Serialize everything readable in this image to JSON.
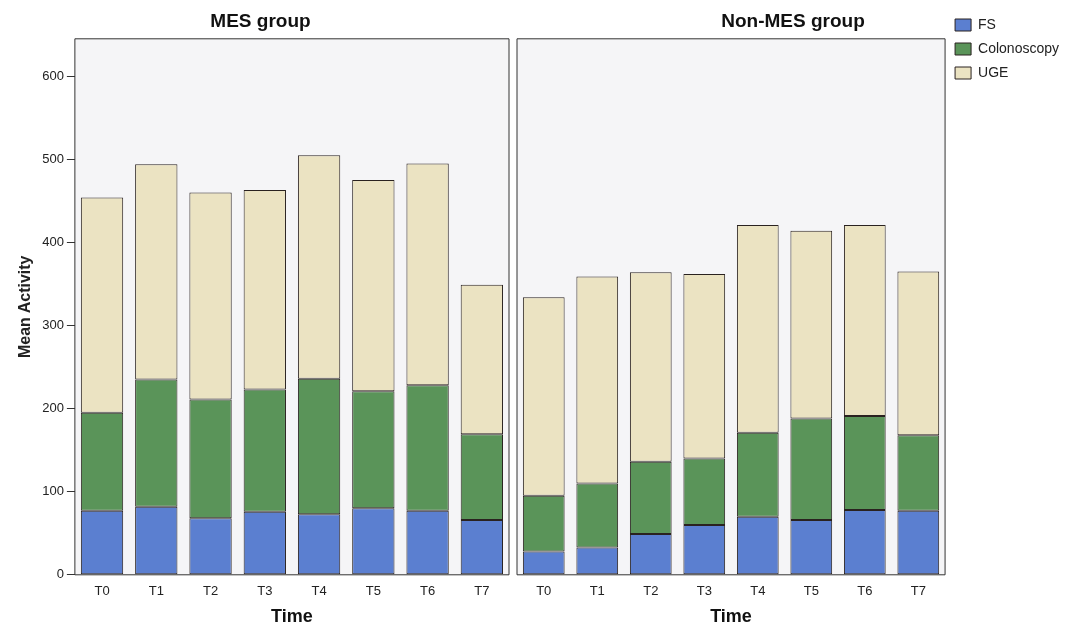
{
  "chart_data": [
    {
      "type": "bar",
      "title": "MES group",
      "xlabel": "Time",
      "ylabel": "Mean Activity",
      "categories": [
        "T0",
        "T1",
        "T2",
        "T3",
        "T4",
        "T5",
        "T6",
        "T7"
      ],
      "stacked": true,
      "ylim": [
        0,
        645
      ],
      "yticks": [
        0,
        100,
        200,
        300,
        400,
        500,
        600
      ],
      "grid": false,
      "legend": false,
      "series": [
        {
          "color": "#5b7fd0",
          "values": [
            77,
            82,
            68,
            76,
            73,
            80,
            77,
            66
          ]
        },
        {
          "color": "#5a9459",
          "values": [
            118,
            153,
            143,
            147,
            163,
            141,
            151,
            103
          ]
        },
        {
          "color": "#ebe3c2",
          "values": [
            259,
            259,
            249,
            240,
            269,
            254,
            267,
            180
          ]
        }
      ]
    },
    {
      "type": "bar",
      "title": "Non-MES group",
      "xlabel": "Time",
      "categories": [
        "T0",
        "T1",
        "T2",
        "T3",
        "T4",
        "T5",
        "T6",
        "T7"
      ],
      "stacked": true,
      "ylim": [
        0,
        645
      ],
      "yticks": [
        0,
        100,
        200,
        300,
        400,
        500,
        600
      ],
      "tick_labels": "x",
      "grid": false,
      "legend": "top right",
      "series": [
        {
          "name": "FS",
          "color": "#5b7fd0",
          "values": [
            28,
            33,
            49,
            60,
            70,
            66,
            78,
            77
          ]
        },
        {
          "name": "Colonoscopy",
          "color": "#5a9459",
          "values": [
            67,
            77,
            87,
            80,
            101,
            122,
            113,
            91
          ]
        },
        {
          "name": "UGE",
          "color": "#ebe3c2",
          "values": [
            239,
            249,
            228,
            222,
            250,
            226,
            230,
            197
          ]
        }
      ]
    }
  ]
}
